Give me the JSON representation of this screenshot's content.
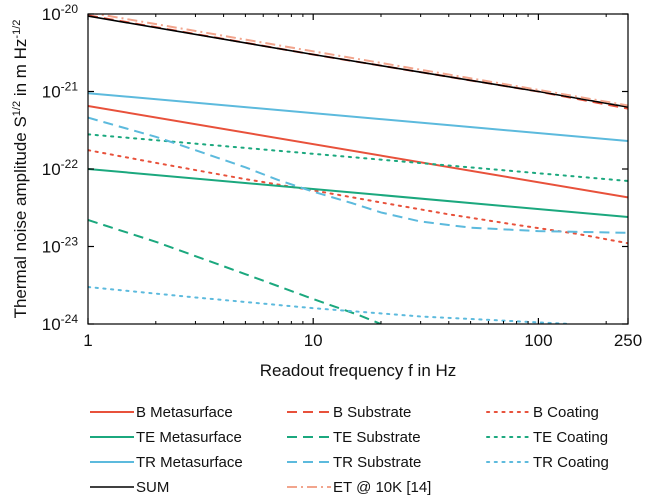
{
  "chart_data": {
    "type": "line",
    "xlabel": "Readout frequency f in Hz",
    "ylabel": "Thermal noise amplitude S1/2 in m Hz-1/2",
    "x_scale": "log",
    "y_scale": "log",
    "xlim": [
      1,
      250
    ],
    "ylim": [
      1e-24,
      1e-20
    ],
    "x_ticks": [
      1,
      10,
      100,
      250
    ],
    "x_tick_labels": [
      "1",
      "10",
      "100",
      "250"
    ],
    "y_ticks": [
      1e-24,
      1e-23,
      1e-22,
      1e-21,
      1e-20
    ],
    "y_tick_labels": [
      "10-24",
      "10-23",
      "10-22",
      "10-21",
      "10-20"
    ],
    "grid": false,
    "legend_position": "bottom",
    "series": [
      {
        "name": "B Metasurface",
        "color": "#e8513b",
        "dash": "solid",
        "x": [
          1,
          250
        ],
        "y": [
          6.5e-22,
          4.3e-23
        ]
      },
      {
        "name": "B Substrate",
        "color": "#e8513b",
        "dash": "dashed",
        "x": [
          1,
          10,
          100,
          250
        ],
        "y": [
          9.6e-21,
          3e-21,
          1e-21,
          6e-22
        ]
      },
      {
        "name": "B Coating",
        "color": "#e8513b",
        "dash": "dotted",
        "x": [
          1,
          2,
          5,
          10,
          20,
          40,
          80,
          150,
          250
        ],
        "y": [
          1.75e-22,
          1.2e-22,
          7.4e-23,
          5.3e-23,
          3.7e-23,
          2.6e-23,
          1.9e-23,
          1.45e-23,
          1.1e-23
        ]
      },
      {
        "name": "TE Metasurface",
        "color": "#1ba87e",
        "dash": "solid",
        "x": [
          1,
          250
        ],
        "y": [
          1e-22,
          2.4e-23
        ]
      },
      {
        "name": "TE Substrate",
        "color": "#1ba87e",
        "dash": "dashed",
        "x": [
          1,
          2,
          5,
          10,
          16,
          20
        ],
        "y": [
          2.2e-23,
          1.15e-23,
          4.4e-24,
          2.1e-24,
          1.3e-24,
          1e-24
        ]
      },
      {
        "name": "TE Coating",
        "color": "#1ba87e",
        "dash": "dotted",
        "x": [
          1,
          250
        ],
        "y": [
          2.8e-22,
          7e-23
        ]
      },
      {
        "name": "TR Metasurface",
        "color": "#5cbadd",
        "dash": "solid",
        "x": [
          1,
          250
        ],
        "y": [
          9.5e-22,
          2.3e-22
        ]
      },
      {
        "name": "TR Substrate",
        "color": "#5cbadd",
        "dash": "dashed",
        "x": [
          1,
          2,
          3,
          5,
          7,
          10,
          15,
          20,
          30,
          50,
          100,
          250
        ],
        "y": [
          4.6e-22,
          2.6e-22,
          1.75e-22,
          1.05e-22,
          7.2e-23,
          5.1e-23,
          3.6e-23,
          2.75e-23,
          2.1e-23,
          1.75e-23,
          1.58e-23,
          1.5e-23
        ]
      },
      {
        "name": "TR Coating",
        "color": "#5cbadd",
        "dash": "dotted",
        "x": [
          1,
          3,
          10,
          30,
          100,
          140
        ],
        "y": [
          3e-24,
          2.2e-24,
          1.6e-24,
          1.25e-24,
          1.05e-24,
          1e-24
        ]
      },
      {
        "name": "SUM",
        "color": "#000000",
        "dash": "solid",
        "x": [
          1,
          10,
          100,
          250
        ],
        "y": [
          9.4e-21,
          3e-21,
          1e-21,
          6.3e-22
        ]
      },
      {
        "name": "ET @ 10K [14]",
        "color": "#f2a58d",
        "dash": "dashdot",
        "x": [
          1,
          10,
          100,
          250
        ],
        "y": [
          1.05e-20,
          3.3e-21,
          1.05e-21,
          6.6e-22
        ]
      }
    ]
  }
}
